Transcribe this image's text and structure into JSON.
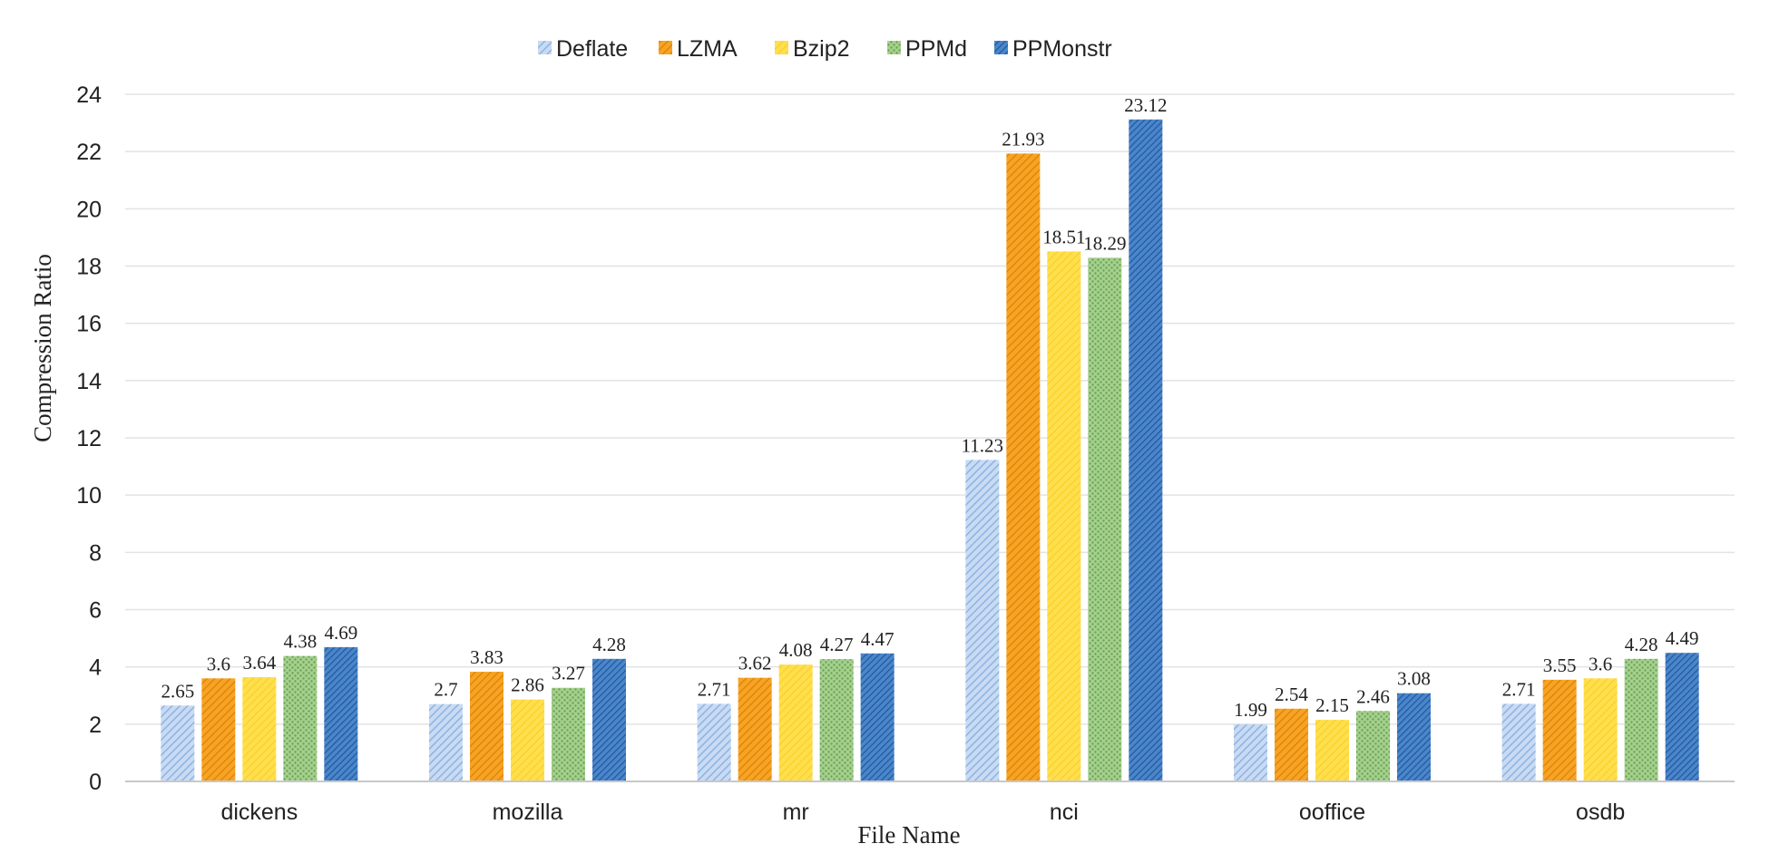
{
  "chart_data": {
    "type": "bar",
    "title": "",
    "xlabel": "File Name",
    "ylabel": "Compression Ratio",
    "categories": [
      "dickens",
      "mozilla",
      "mr",
      "nci",
      "ooffice",
      "osdb"
    ],
    "ylim": [
      0,
      24
    ],
    "yticks": [
      0,
      2,
      4,
      6,
      8,
      10,
      12,
      14,
      16,
      18,
      20,
      22,
      24
    ],
    "grid": true,
    "legend_position": "top",
    "series": [
      {
        "name": "Deflate",
        "color": "#a9c5ea",
        "pattern": "light-diagonal",
        "values": [
          2.65,
          2.7,
          2.71,
          11.23,
          1.99,
          2.71
        ],
        "labels": [
          "2.65",
          "2.7",
          "2.71",
          "11.23",
          "1.99",
          "2.71"
        ]
      },
      {
        "name": "LZMA",
        "color": "#f39b1b",
        "pattern": "diagonal",
        "values": [
          3.6,
          3.83,
          3.62,
          21.93,
          2.54,
          3.55
        ],
        "labels": [
          "3.6",
          "3.83",
          "3.62",
          "21.93",
          "2.54",
          "3.55"
        ]
      },
      {
        "name": "Bzip2",
        "color": "#ffd83a",
        "pattern": "solid-light",
        "values": [
          3.64,
          2.86,
          4.08,
          18.51,
          2.15,
          3.6
        ],
        "labels": [
          "3.64",
          "2.86",
          "4.08",
          "18.51",
          "2.15",
          "3.6"
        ]
      },
      {
        "name": "PPMd",
        "color": "#93c47d",
        "pattern": "dots",
        "values": [
          4.38,
          3.27,
          4.27,
          18.29,
          2.46,
          4.28
        ],
        "labels": [
          "4.38",
          "3.27",
          "4.27",
          "18.29",
          "2.46",
          "4.28"
        ]
      },
      {
        "name": "PPMonstr",
        "color": "#3a78c2",
        "pattern": "dense-diagonal",
        "values": [
          4.69,
          4.28,
          4.47,
          23.12,
          3.08,
          4.49
        ],
        "labels": [
          "4.69",
          "4.28",
          "4.47",
          "23.12",
          "3.08",
          "4.49"
        ]
      }
    ]
  }
}
